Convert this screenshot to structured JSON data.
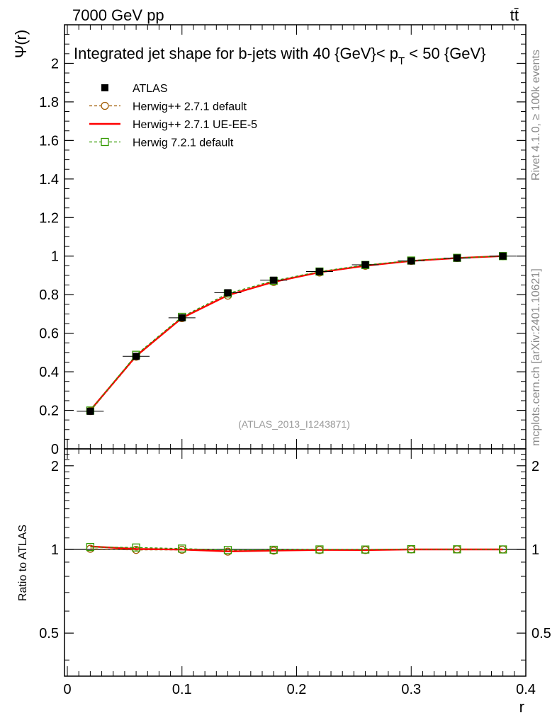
{
  "header": {
    "left": "7000 GeV pp",
    "right": "tt̄"
  },
  "side_labels": {
    "rivet": "Rivet 4.1.0, ≥ 100k events",
    "mcplots": "mcplots.cern.ch [arXiv:2401.10621]"
  },
  "reference": "(ATLAS_2013_I1243871)",
  "chart_data": [
    {
      "type": "line",
      "panel": "main",
      "title": "Integrated jet shape for b-jets with 40 {GeV}< p_T < 50 {GeV}",
      "title_parts": {
        "main": "Integrated jet shape for b-jets with 40 {GeV}< p",
        "sub": "T",
        "tail": " < 50 {GeV}"
      },
      "ylabel": "Ψ(r)",
      "xlabel": "r",
      "xlim": [
        -0.0025,
        0.4
      ],
      "ylim": [
        0,
        2.2
      ],
      "x": [
        0.02,
        0.06,
        0.1,
        0.14,
        0.18,
        0.22,
        0.26,
        0.3,
        0.34,
        0.38
      ],
      "yticks": [
        0,
        0.2,
        0.4,
        0.6,
        0.8,
        1,
        1.2,
        1.4,
        1.6,
        1.8,
        2
      ],
      "ytick_labels": [
        "0",
        "0.2",
        "0.4",
        "0.6",
        "0.8",
        "1",
        "1.2",
        "1.4",
        "1.6",
        "1.8",
        "2"
      ],
      "series": [
        {
          "name": "ATLAS",
          "style": "marker-square-filled",
          "color": "#000000",
          "values": [
            0.195,
            0.48,
            0.68,
            0.81,
            0.875,
            0.92,
            0.955,
            0.975,
            0.99,
            1.0
          ]
        },
        {
          "name": "Herwig++ 2.7.1 default",
          "style": "dashed-circle",
          "color": "#a05a00",
          "values": [
            0.196,
            0.478,
            0.678,
            0.795,
            0.866,
            0.915,
            0.95,
            0.975,
            0.99,
            1.0
          ]
        },
        {
          "name": "Herwig++ 2.7.1 UE-EE-5",
          "style": "solid",
          "color": "#ff0000",
          "values": [
            0.2,
            0.482,
            0.679,
            0.797,
            0.866,
            0.916,
            0.95,
            0.975,
            0.99,
            1.0
          ]
        },
        {
          "name": "Herwig 7.2.1 default",
          "style": "dashed-square",
          "color": "#339900",
          "values": [
            0.199,
            0.488,
            0.685,
            0.806,
            0.872,
            0.92,
            0.954,
            0.977,
            0.991,
            1.0
          ]
        }
      ]
    },
    {
      "type": "line",
      "panel": "ratio",
      "ylabel": "Ratio to ATLAS",
      "xlabel": "r",
      "xlim": [
        -0.0025,
        0.4
      ],
      "ylim": [
        0.35,
        2.3
      ],
      "ytick_labels": [
        "0.5",
        "1",
        "2"
      ],
      "xtick_labels": [
        "0",
        "0.1",
        "0.2",
        "0.3",
        "0.4"
      ],
      "x": [
        0.02,
        0.06,
        0.1,
        0.14,
        0.18,
        0.22,
        0.26,
        0.3,
        0.34,
        0.38
      ],
      "series": [
        {
          "name": "Herwig++ 2.7.1 default",
          "values": [
            1.005,
            0.996,
            0.997,
            0.982,
            0.99,
            0.995,
            0.995,
            1.0,
            1.0,
            1.0
          ]
        },
        {
          "name": "Herwig++ 2.7.1 UE-EE-5",
          "values": [
            1.025,
            1.004,
            0.999,
            0.984,
            0.99,
            0.996,
            0.995,
            1.0,
            1.0,
            1.0
          ]
        },
        {
          "name": "Herwig 7.2.1 default",
          "values": [
            1.02,
            1.016,
            1.007,
            0.995,
            0.997,
            1.0,
            0.999,
            1.002,
            1.001,
            1.0
          ]
        }
      ]
    }
  ]
}
